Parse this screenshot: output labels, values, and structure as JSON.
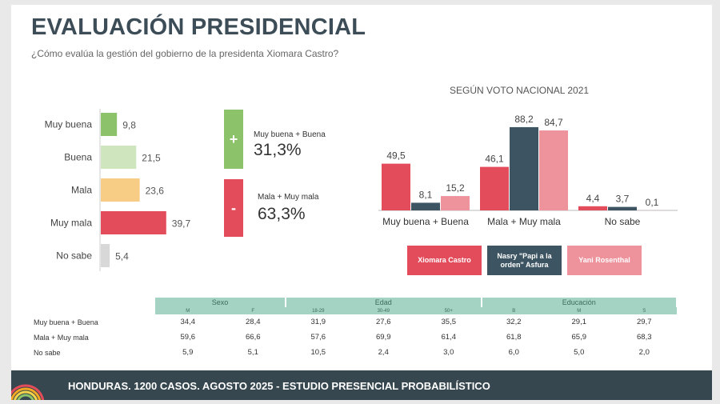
{
  "header": {
    "title": "EVALUACIÓN PRESIDENCIAL",
    "subtitle": "¿Cómo evalúa la gestión del gobierno de la presidenta Xiomara Castro?"
  },
  "summary": {
    "positive": {
      "sign": "+",
      "label": "Muy buena + Buena",
      "value": "31,3%",
      "color": "#8cc269"
    },
    "negative": {
      "sign": "-",
      "label": "Mala + Muy mala",
      "value": "63,3%",
      "color": "#e34c5b"
    }
  },
  "footer": {
    "text": "HONDURAS. 1200 CASOS. AGOSTO 2025 - ESTUDIO PRESENCIAL PROBABILÍSTICO"
  },
  "crosstab": {
    "groups": [
      {
        "label": "Sexo",
        "span": 2
      },
      {
        "label": "Edad",
        "span": 3
      },
      {
        "label": "Educación",
        "span": 3
      }
    ],
    "columns": [
      "M",
      "F",
      "18-29",
      "30-49",
      "50+",
      "B",
      "M",
      "S"
    ],
    "rows": [
      {
        "label": "Muy buena + Buena",
        "values": [
          "34,4",
          "28,4",
          "31,9",
          "27,6",
          "35,5",
          "32,2",
          "29,1",
          "29,7"
        ]
      },
      {
        "label": "Mala + Muy mala",
        "values": [
          "59,6",
          "66,6",
          "57,6",
          "69,9",
          "61,4",
          "61,8",
          "65,9",
          "68,3"
        ]
      },
      {
        "label": "No sabe",
        "values": [
          "5,9",
          "5,1",
          "10,5",
          "2,4",
          "3,0",
          "6,0",
          "5,0",
          "2,0"
        ]
      }
    ]
  },
  "chart_data": [
    {
      "type": "bar",
      "orientation": "horizontal",
      "title": "",
      "categories": [
        "Muy buena",
        "Buena",
        "Mala",
        "Muy mala",
        "No sabe"
      ],
      "values": [
        9.8,
        21.5,
        23.6,
        39.7,
        5.4
      ],
      "labels": [
        "9,8",
        "21,5",
        "23,6",
        "39,7",
        "5,4"
      ],
      "colors": [
        "#8cc269",
        "#cfe5bd",
        "#f7cc85",
        "#e34c5b",
        "#d8d8d8"
      ],
      "xlim": [
        0,
        40
      ],
      "grid": false
    },
    {
      "type": "bar",
      "title": "SEGÚN VOTO NACIONAL 2021",
      "categories": [
        "Muy buena + Buena",
        "Mala + Muy mala",
        "No sabe"
      ],
      "series": [
        {
          "name": "Xiomara Castro",
          "color": "#e34c5b",
          "values": [
            49.5,
            46.1,
            4.4
          ],
          "labels": [
            "49,5",
            "46,1",
            "4,4"
          ]
        },
        {
          "name": "Nasry \"Papi a la orden\" Asfura",
          "color": "#3d5563",
          "values": [
            8.1,
            88.2,
            3.7
          ],
          "labels": [
            "8,1",
            "88,2",
            "3,7"
          ]
        },
        {
          "name": "Yani Rosenthal",
          "color": "#ee929c",
          "values": [
            15.2,
            84.7,
            0.1
          ],
          "labels": [
            "15,2",
            "84,7",
            "0,1"
          ]
        }
      ],
      "ylim": [
        0,
        100
      ],
      "legend": "bottom",
      "grid": false
    }
  ]
}
